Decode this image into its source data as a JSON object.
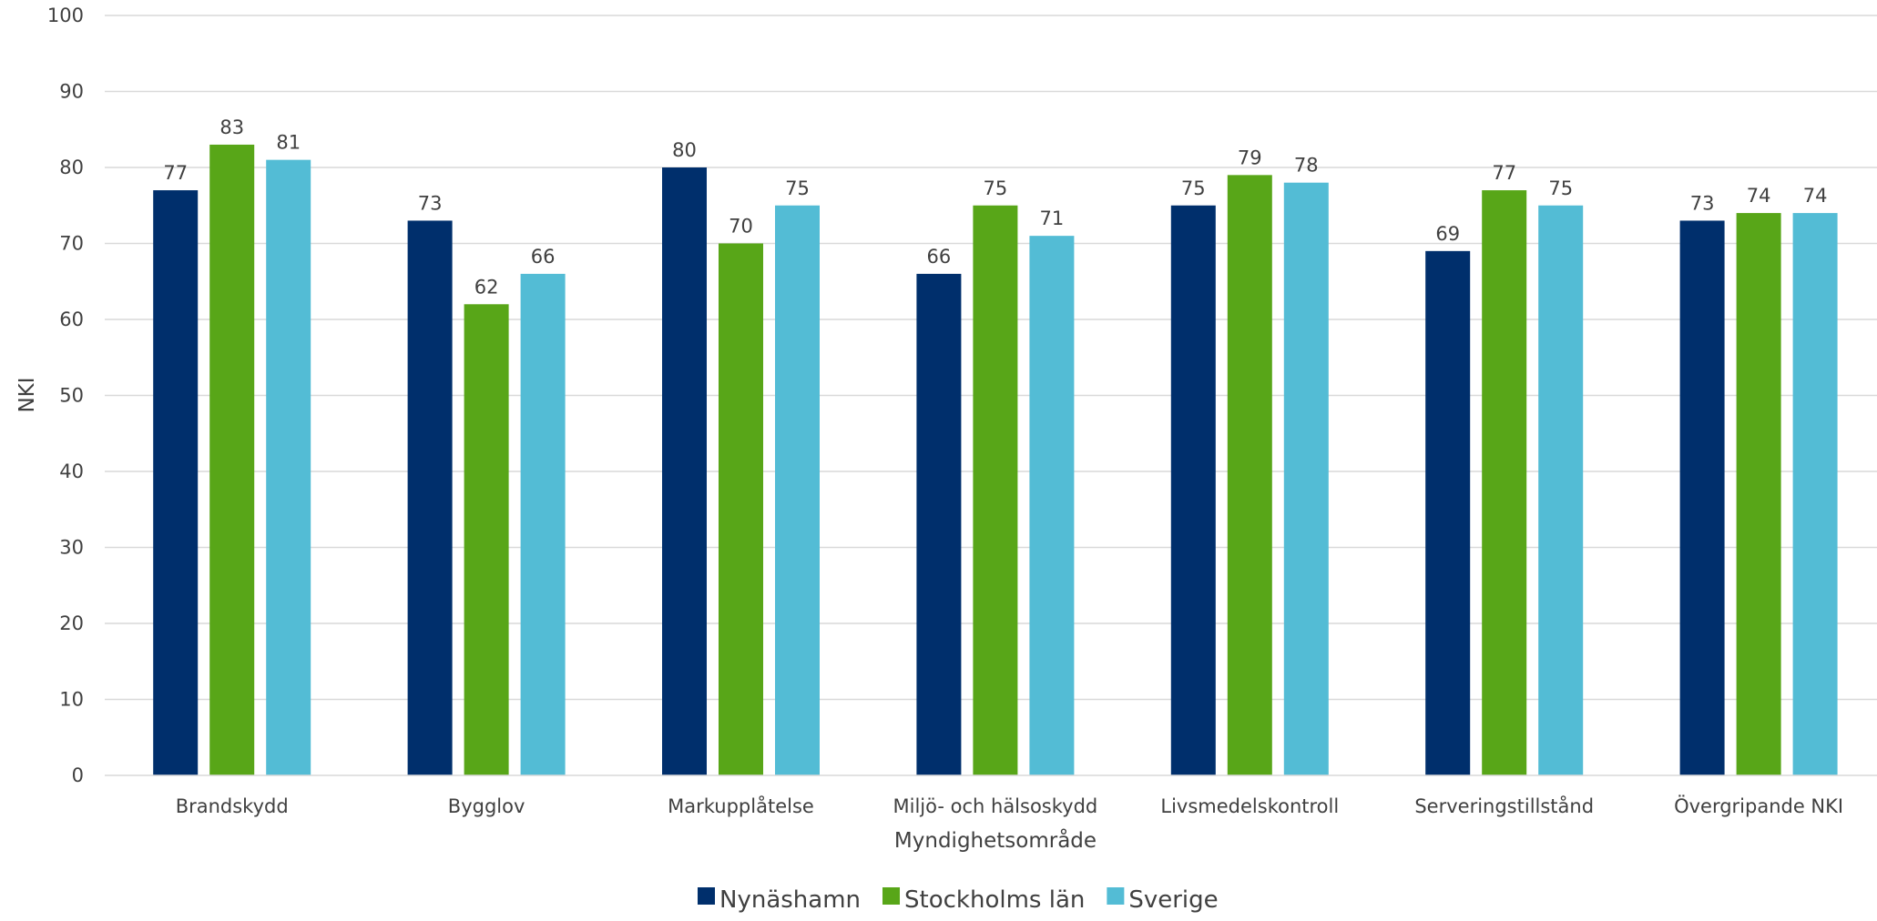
{
  "chart_data": {
    "type": "bar",
    "title": "",
    "xlabel": "Myndighetsområde",
    "ylabel": "NKI",
    "ylim": [
      0,
      100
    ],
    "yticks": [
      0,
      10,
      20,
      30,
      40,
      50,
      60,
      70,
      80,
      90,
      100
    ],
    "grid": true,
    "legend_position": "bottom",
    "categories": [
      "Brandskydd",
      "Bygglov",
      "Markupplåtelse",
      "Miljö- och hälsoskydd",
      "Livsmedelskontroll",
      "Serveringstillstånd",
      "Övergripande NKI"
    ],
    "series": [
      {
        "name": "Nynäshamn",
        "color": "#002F6C",
        "values": [
          77,
          73,
          80,
          66,
          75,
          69,
          73
        ]
      },
      {
        "name": "Stockholms län",
        "color": "#58A618",
        "values": [
          83,
          62,
          70,
          75,
          79,
          77,
          74
        ]
      },
      {
        "name": "Sverige",
        "color": "#53BCD5",
        "values": [
          81,
          66,
          75,
          71,
          78,
          75,
          74
        ]
      }
    ],
    "gridline_color": "#D9D9D9",
    "text_color": "#404040"
  }
}
